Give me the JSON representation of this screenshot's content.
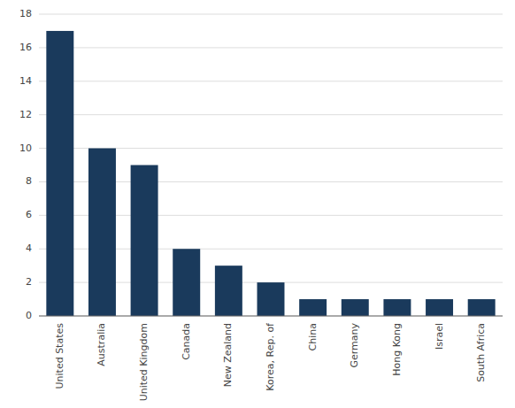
{
  "chart_data": {
    "type": "bar",
    "categories": [
      "United States",
      "Australia",
      "United Kingdom",
      "Canada",
      "New Zealand",
      "Korea, Rep. of",
      "China",
      "Germany",
      "Hong Kong",
      "Israel",
      "South Africa"
    ],
    "values": [
      17,
      10,
      9,
      4,
      3,
      2,
      1,
      1,
      1,
      1,
      1
    ],
    "color": "#1a3a5c",
    "ylim": [
      0,
      18
    ],
    "yticks": [
      0,
      2,
      4,
      6,
      8,
      10,
      12,
      14,
      16,
      18
    ],
    "grid": true
  }
}
